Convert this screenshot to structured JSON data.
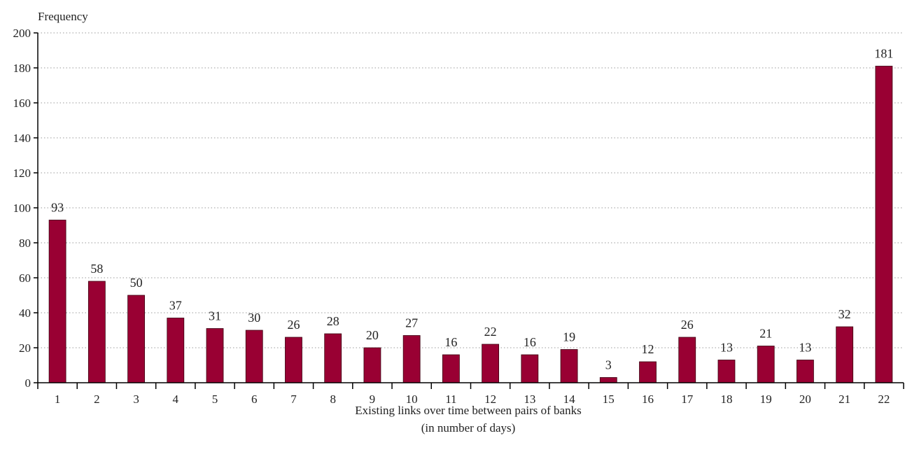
{
  "chart_data": {
    "type": "bar",
    "categories": [
      "1",
      "2",
      "3",
      "4",
      "5",
      "6",
      "7",
      "8",
      "9",
      "10",
      "11",
      "12",
      "13",
      "14",
      "15",
      "16",
      "17",
      "18",
      "19",
      "20",
      "21",
      "22"
    ],
    "values": [
      93,
      58,
      50,
      37,
      31,
      30,
      26,
      28,
      20,
      27,
      16,
      22,
      16,
      19,
      3,
      12,
      26,
      13,
      21,
      13,
      32,
      181
    ],
    "title": "",
    "ylabel": "Frequency",
    "xlabel": "Existing links over time between pairs of banks",
    "xlabel_line2": "(in number of days)",
    "ylim": [
      0,
      200
    ],
    "yticks": [
      0,
      20,
      40,
      60,
      80,
      100,
      120,
      140,
      160,
      180,
      200
    ],
    "grid": "horizontal-dotted",
    "legend": "none",
    "bar_color": "#990033"
  }
}
